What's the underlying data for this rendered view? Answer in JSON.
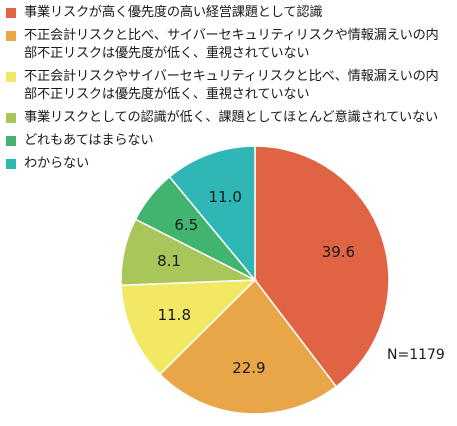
{
  "chart_data": {
    "type": "pie",
    "start_angle_deg": 0,
    "direction": "clockwise",
    "slices": [
      {
        "label": "事業リスクが高く優先度の高い経営課題として認識",
        "value": 39.6,
        "color": "#E06444"
      },
      {
        "label": "不正会計リスクと比べ、サイバーセキュリティリスクや情報漏えいの内\n部不正リスクは優先度が低く、重視されていない",
        "value": 22.9,
        "color": "#E9A649"
      },
      {
        "label": "不正会計リスクやサイバーセキュリティリスクと比べ、情報漏えいの内\n部不正リスクは優先度が低く、重視されていない",
        "value": 11.8,
        "color": "#F2E864"
      },
      {
        "label": "事業リスクとしての認識が低く、課題としてほとんど意識されていない",
        "value": 8.1,
        "color": "#A8C65A"
      },
      {
        "label": "どれもあてはまらない",
        "value": 6.5,
        "color": "#42B470"
      },
      {
        "label": "わからない",
        "value": 11.0,
        "color": "#2EB7B5"
      }
    ],
    "data_labels": [
      "39.6",
      "22.9",
      "11.8",
      "8.1",
      "6.5",
      "11.0"
    ],
    "legend_position": "top-left",
    "annotation": "N=1179"
  }
}
